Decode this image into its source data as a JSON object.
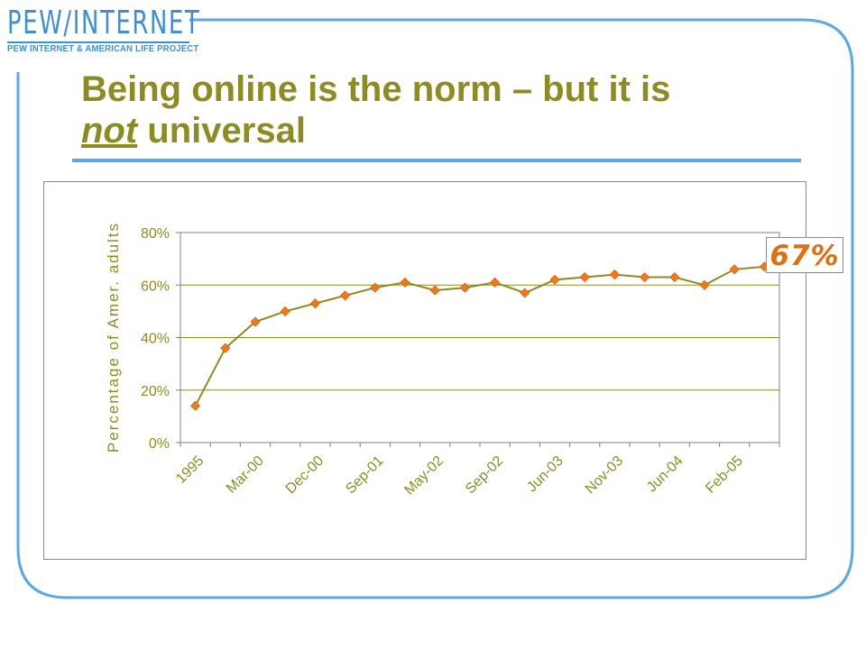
{
  "header": {
    "logo_main": "PEW/INTERNET",
    "logo_sub": "PEW INTERNET & AMERICAN LIFE PROJECT"
  },
  "slide": {
    "title_part1": "Being online is the norm – but it is",
    "title_not": "not",
    "title_part2": " universal",
    "callout": "67%"
  },
  "colors": {
    "accent_blue": "#5aa8e6",
    "title_olive": "#8c8c23",
    "series_line": "#8c8c23",
    "marker": "#f07a1a",
    "callout_text": "#e0700f"
  },
  "chart_data": {
    "type": "line",
    "title": "",
    "xlabel": "",
    "ylabel": "Percentage of Amer. adults",
    "ylim": [
      0,
      0.8
    ],
    "yticks": [
      "0%",
      "20%",
      "40%",
      "60%",
      "80%"
    ],
    "xtick_labels": [
      "1995",
      "Mar-00",
      "Dec-00",
      "Sep-01",
      "May-02",
      "Sep-02",
      "Jun-03",
      "Nov-03",
      "Jun-04",
      "Feb-05"
    ],
    "grid": "horizontal",
    "series": [
      {
        "values": [
          0.14,
          0.36,
          0.46,
          0.5,
          0.53,
          0.56,
          0.59,
          0.61,
          0.58,
          0.59,
          0.61,
          0.57,
          0.62,
          0.63,
          0.64,
          0.63,
          0.63,
          0.6,
          0.66,
          0.67
        ]
      }
    ]
  }
}
